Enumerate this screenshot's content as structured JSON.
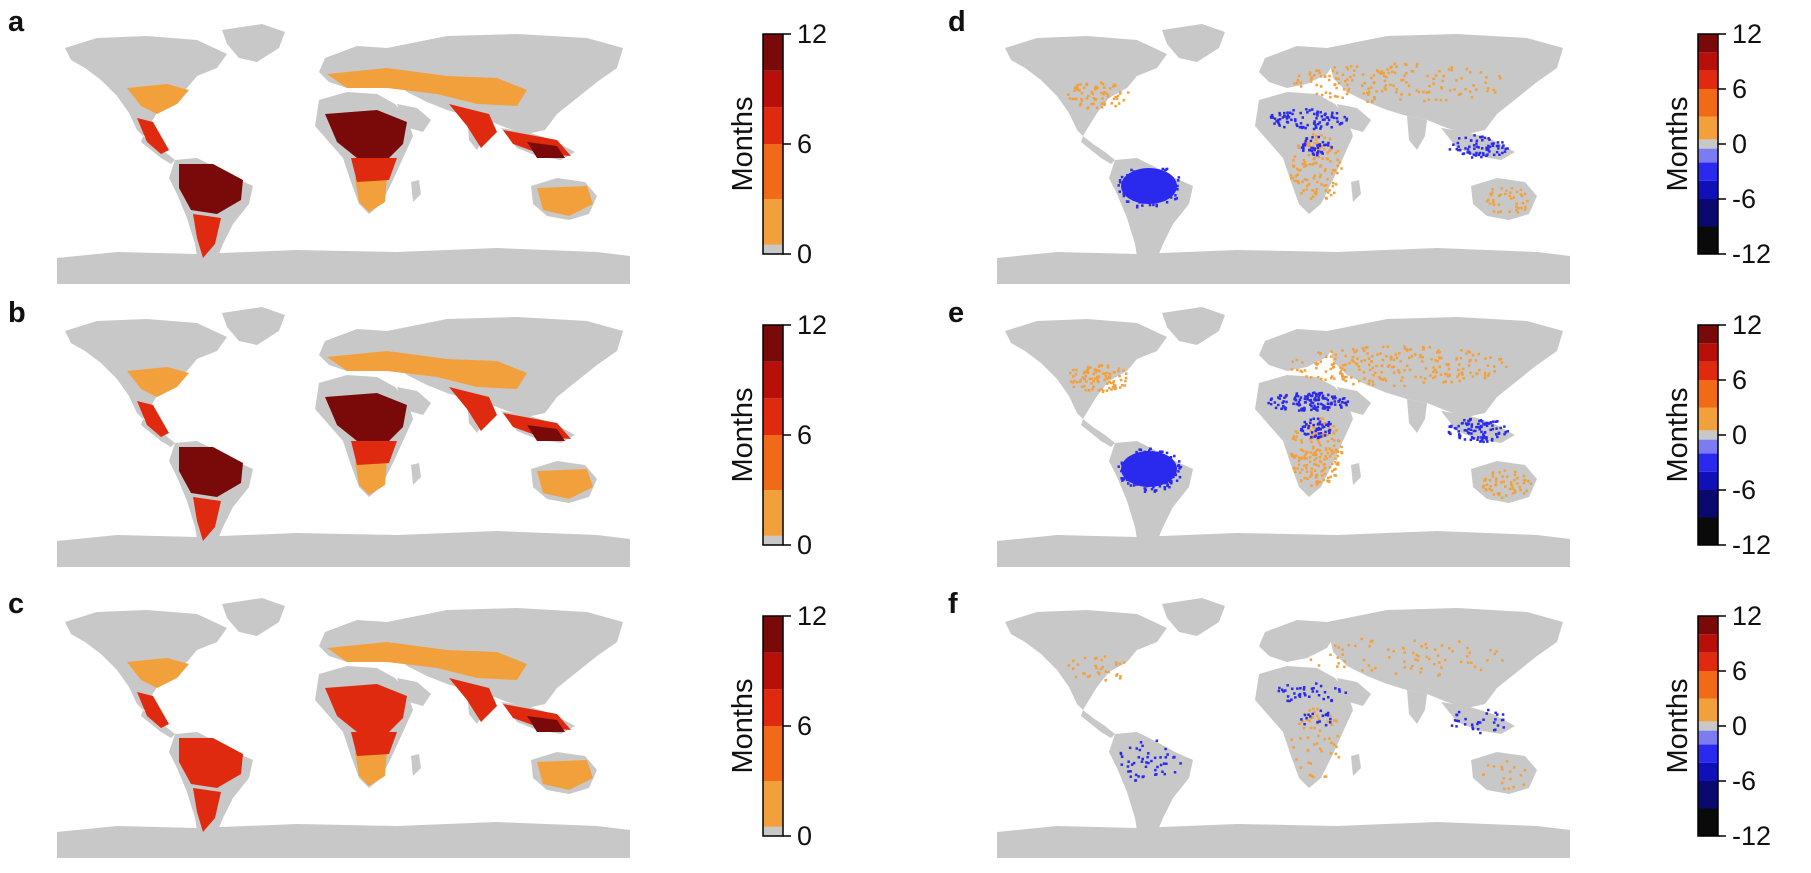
{
  "figure": {
    "panels": [
      {
        "id": "a",
        "label": "a",
        "scale": "months_positive"
      },
      {
        "id": "b",
        "label": "b",
        "scale": "months_positive"
      },
      {
        "id": "c",
        "label": "c",
        "scale": "months_positive"
      },
      {
        "id": "d",
        "label": "d",
        "scale": "months_change"
      },
      {
        "id": "e",
        "label": "e",
        "scale": "months_change"
      },
      {
        "id": "f",
        "label": "f",
        "scale": "months_change"
      }
    ]
  },
  "colorbars": {
    "months_positive": {
      "title": "Months",
      "ticks": [
        "12",
        "6",
        "0"
      ],
      "tick_values": [
        12,
        6,
        0
      ],
      "range": [
        0,
        12
      ],
      "bands": [
        {
          "from": 0,
          "to": 0.5,
          "color": "#c8c8c8"
        },
        {
          "from": 0.5,
          "to": 3,
          "color": "#f2a03c"
        },
        {
          "from": 3,
          "to": 6,
          "color": "#f06a1a"
        },
        {
          "from": 6,
          "to": 8,
          "color": "#e02a10"
        },
        {
          "from": 8,
          "to": 10,
          "color": "#b80f0a"
        },
        {
          "from": 10,
          "to": 12,
          "color": "#7a0a0a"
        }
      ]
    },
    "months_change": {
      "title": "Months",
      "ticks": [
        "12",
        "6",
        "0",
        "-6",
        "-12"
      ],
      "tick_values": [
        12,
        6,
        0,
        -6,
        -12
      ],
      "range": [
        -12,
        12
      ],
      "bands": [
        {
          "from": -12,
          "to": -9,
          "color": "#0a0a0a"
        },
        {
          "from": -9,
          "to": -6,
          "color": "#0a0a6e"
        },
        {
          "from": -6,
          "to": -4,
          "color": "#1010b8"
        },
        {
          "from": -4,
          "to": -2,
          "color": "#2a2aee"
        },
        {
          "from": -2,
          "to": -0.5,
          "color": "#7c7cf2"
        },
        {
          "from": -0.5,
          "to": 0.5,
          "color": "#c8c8c8"
        },
        {
          "from": 0.5,
          "to": 3,
          "color": "#f2a03c"
        },
        {
          "from": 3,
          "to": 6,
          "color": "#f06a1a"
        },
        {
          "from": 6,
          "to": 8,
          "color": "#e02a10"
        },
        {
          "from": 8,
          "to": 10,
          "color": "#b80f0a"
        },
        {
          "from": 10,
          "to": 12,
          "color": "#7a0a0a"
        }
      ]
    }
  },
  "colors": {
    "land": "#c8c8c8",
    "ocean": "#ffffff",
    "orange": "#f2a03c",
    "red": "#e02a10",
    "darkred": "#7a0a0a",
    "blue": "#2a2aee"
  }
}
